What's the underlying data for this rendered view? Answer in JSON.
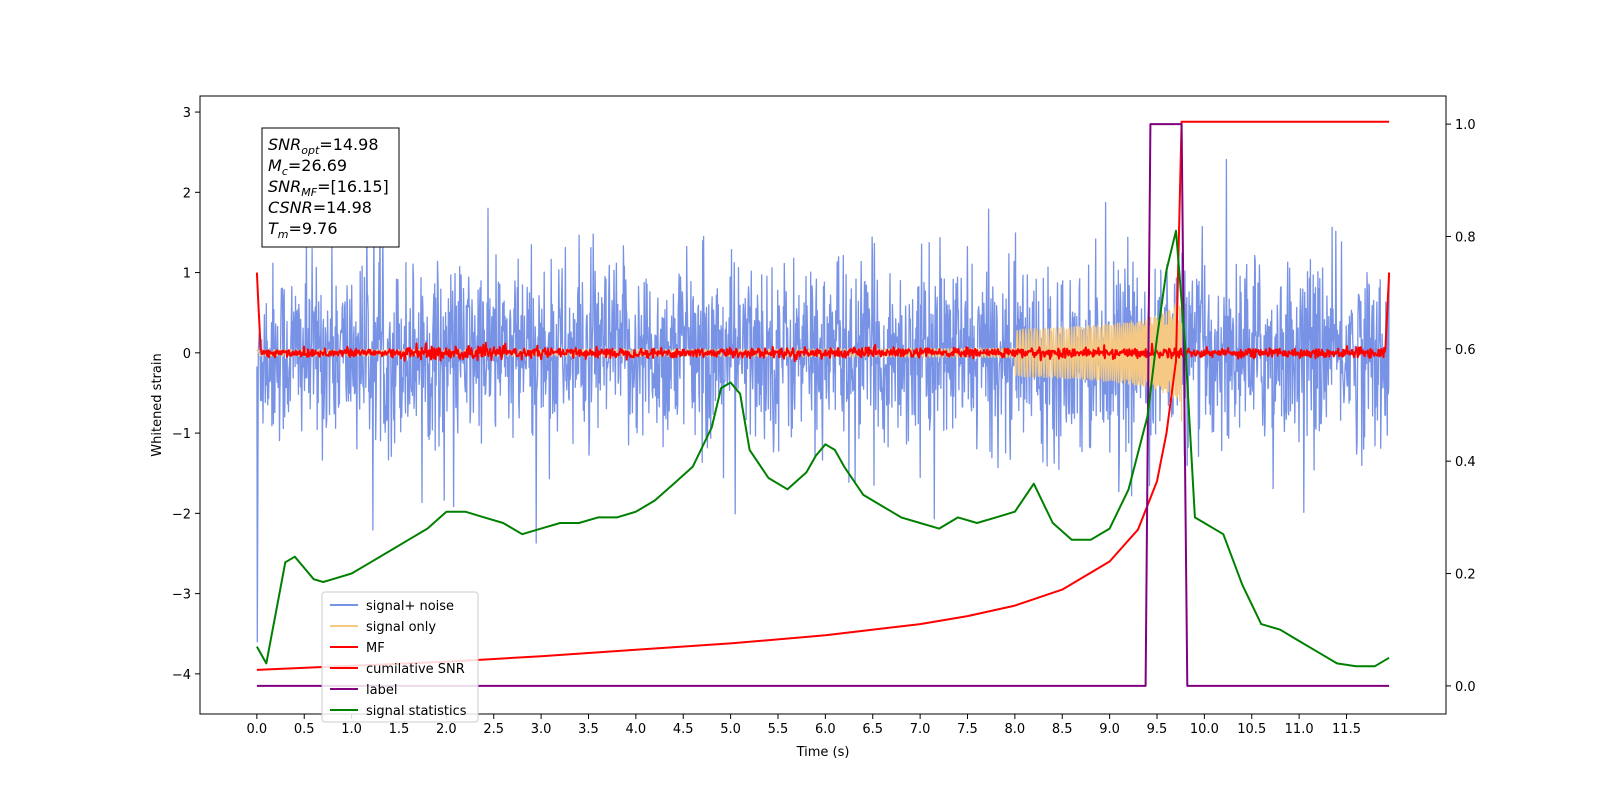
{
  "chart_data": {
    "type": "line",
    "xlabel": "Time (s)",
    "ylabel": "Whitened strain",
    "xlim": [
      -0.6,
      12.55
    ],
    "ylim": [
      -4.5,
      3.2
    ],
    "y2lim": [
      -0.05,
      1.05
    ],
    "x_ticks": [
      "0.0",
      "0.5",
      "1.0",
      "1.5",
      "2.0",
      "2.5",
      "3.0",
      "3.5",
      "4.0",
      "4.5",
      "5.0",
      "5.5",
      "6.0",
      "6.5",
      "7.0",
      "7.5",
      "8.0",
      "8.5",
      "9.0",
      "9.5",
      "10.0",
      "10.5",
      "11.0",
      "11.5"
    ],
    "y_ticks": [
      "3",
      "2",
      "1",
      "0",
      "−1",
      "−2",
      "−3",
      "−4"
    ],
    "y2_ticks": [
      "1.0",
      "0.8",
      "0.6",
      "0.4",
      "0.2",
      "0.0"
    ],
    "grid": false,
    "legend_position": "lower-left",
    "info_box": {
      "lines": [
        {
          "main": "SNR",
          "sub": "opt",
          "rest": "=14.98"
        },
        {
          "main": "M",
          "sub": "c",
          "rest": "=26.69"
        },
        {
          "main": "SNR",
          "sub": "MF",
          "rest": "=[16.15]"
        },
        {
          "main": "CSNR",
          "sub": "",
          "rest": "=14.98"
        },
        {
          "main": "T",
          "sub": "m",
          "rest": "=9.76"
        }
      ]
    },
    "series": [
      {
        "name": "signal+ noise",
        "color": "#7893e6",
        "axis": "left",
        "kind": "noise",
        "t_range": [
          0.0,
          11.95
        ],
        "envelope_pos": [
          1.3,
          1.7
        ],
        "envelope_neg": [
          -1.3,
          -1.9
        ]
      },
      {
        "name": "signal only",
        "color": "#f5c983",
        "axis": "left",
        "kind": "chirp",
        "t_range": [
          0.0,
          9.76
        ],
        "peak_amplitude": 0.9
      },
      {
        "name": "MF",
        "color": "#ff0000",
        "axis": "left",
        "kind": "mf",
        "t_range": [
          0.0,
          11.95
        ],
        "edge_value": 1.0
      },
      {
        "name": "cumilative SNR",
        "color": "#ff0000",
        "axis": "left",
        "x": [
          0.0,
          1.0,
          2.0,
          3.0,
          4.0,
          5.0,
          6.0,
          7.0,
          7.5,
          8.0,
          8.5,
          9.0,
          9.3,
          9.5,
          9.6,
          9.7,
          9.76,
          11.95
        ],
        "y": [
          -3.95,
          -3.9,
          -3.85,
          -3.78,
          -3.7,
          -3.62,
          -3.52,
          -3.38,
          -3.28,
          -3.15,
          -2.95,
          -2.6,
          -2.2,
          -1.6,
          -1.0,
          -0.1,
          2.88,
          2.88
        ]
      },
      {
        "name": "label",
        "color": "#800080",
        "axis": "right",
        "x": [
          0.0,
          9.38,
          9.43,
          9.76,
          9.82,
          11.95
        ],
        "y": [
          0.0,
          0.0,
          1.0,
          1.0,
          0.0,
          0.0
        ]
      },
      {
        "name": "signal statistics",
        "color": "#008000",
        "axis": "right",
        "x": [
          0.0,
          0.1,
          0.2,
          0.3,
          0.4,
          0.5,
          0.6,
          0.7,
          0.8,
          1.0,
          1.2,
          1.4,
          1.6,
          1.8,
          2.0,
          2.2,
          2.4,
          2.6,
          2.8,
          3.0,
          3.2,
          3.4,
          3.6,
          3.8,
          4.0,
          4.2,
          4.4,
          4.6,
          4.8,
          4.9,
          5.0,
          5.1,
          5.2,
          5.4,
          5.6,
          5.8,
          5.9,
          6.0,
          6.1,
          6.2,
          6.4,
          6.6,
          6.8,
          7.0,
          7.2,
          7.4,
          7.6,
          7.8,
          8.0,
          8.2,
          8.4,
          8.6,
          8.8,
          9.0,
          9.2,
          9.4,
          9.5,
          9.6,
          9.7,
          9.8,
          9.9,
          10.0,
          10.2,
          10.4,
          10.6,
          10.8,
          11.0,
          11.2,
          11.4,
          11.6,
          11.8,
          11.95
        ],
        "y": [
          0.07,
          0.04,
          0.13,
          0.22,
          0.23,
          0.21,
          0.19,
          0.185,
          0.19,
          0.2,
          0.22,
          0.24,
          0.26,
          0.28,
          0.31,
          0.31,
          0.3,
          0.29,
          0.27,
          0.28,
          0.29,
          0.29,
          0.3,
          0.3,
          0.31,
          0.33,
          0.36,
          0.39,
          0.46,
          0.53,
          0.54,
          0.52,
          0.42,
          0.37,
          0.35,
          0.38,
          0.41,
          0.43,
          0.42,
          0.39,
          0.34,
          0.32,
          0.3,
          0.29,
          0.28,
          0.3,
          0.29,
          0.3,
          0.31,
          0.36,
          0.29,
          0.26,
          0.26,
          0.28,
          0.35,
          0.48,
          0.62,
          0.74,
          0.81,
          0.6,
          0.3,
          0.29,
          0.27,
          0.18,
          0.11,
          0.1,
          0.08,
          0.06,
          0.04,
          0.035,
          0.035,
          0.05
        ]
      }
    ]
  }
}
